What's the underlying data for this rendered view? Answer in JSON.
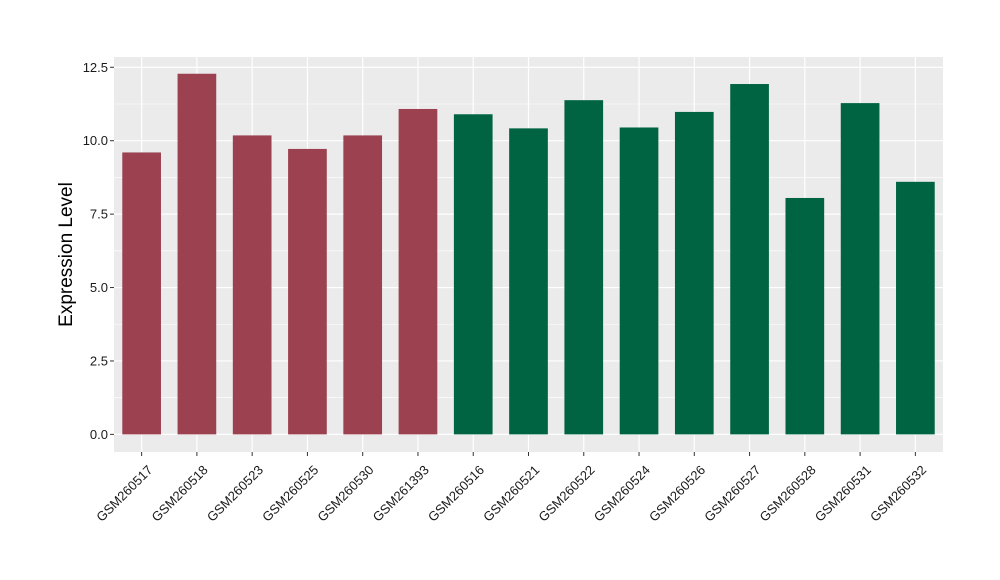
{
  "chart_data": {
    "type": "bar",
    "title": "",
    "xlabel": "",
    "ylabel": "Expression Level",
    "ylim": [
      -0.6,
      12.85
    ],
    "yticks": [
      0.0,
      2.5,
      5.0,
      7.5,
      10.0,
      12.5
    ],
    "ytick_labels": [
      "0.0",
      "2.5",
      "5.0",
      "7.5",
      "10.0",
      "12.5"
    ],
    "grid": true,
    "legend": "none",
    "categories": [
      "GSM260517",
      "GSM260518",
      "GSM260523",
      "GSM260525",
      "GSM260530",
      "GSM261393",
      "GSM260516",
      "GSM260521",
      "GSM260522",
      "GSM260524",
      "GSM260526",
      "GSM260527",
      "GSM260528",
      "GSM260531",
      "GSM260532"
    ],
    "values": [
      9.6,
      12.28,
      10.18,
      9.72,
      10.18,
      11.08,
      10.9,
      10.42,
      11.38,
      10.45,
      10.98,
      11.93,
      8.05,
      11.28,
      8.6
    ],
    "groups": [
      1,
      1,
      1,
      1,
      1,
      1,
      2,
      2,
      2,
      2,
      2,
      2,
      2,
      2,
      2
    ],
    "group_colors": {
      "1": "#9b4150",
      "2": "#006443"
    },
    "panel_background": "#ebebeb",
    "grid_color": "#ffffff"
  }
}
